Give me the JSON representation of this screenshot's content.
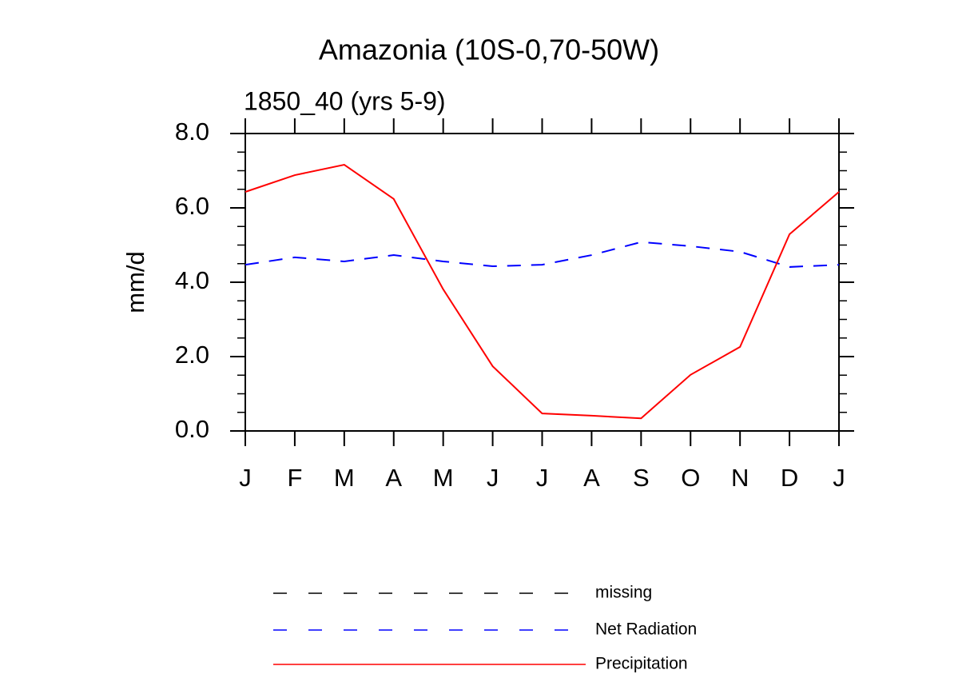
{
  "chart_data": {
    "type": "line",
    "title": "Amazonia (10S-0,70-50W)",
    "subtitle": "1850_40 (yrs 5-9)",
    "y_label": "mm/d",
    "categories": [
      "J",
      "F",
      "M",
      "A",
      "M",
      "J",
      "J",
      "A",
      "S",
      "O",
      "N",
      "D",
      "J"
    ],
    "series": [
      {
        "name": "missing",
        "color": "#000000",
        "dashed": true,
        "values": [
          null,
          null,
          null,
          null,
          null,
          null,
          null,
          null,
          null,
          null,
          null,
          null,
          null
        ]
      },
      {
        "name": "Net Radiation",
        "color": "#0000ff",
        "dashed": true,
        "values": [
          4.47,
          4.67,
          4.56,
          4.73,
          4.56,
          4.43,
          4.47,
          4.73,
          5.08,
          4.97,
          4.82,
          4.41,
          4.47
        ]
      },
      {
        "name": "Precipitation",
        "color": "#ff0000",
        "dashed": false,
        "values": [
          6.43,
          6.88,
          7.16,
          6.24,
          3.81,
          1.74,
          0.47,
          0.41,
          0.34,
          1.51,
          2.26,
          5.29,
          6.43
        ]
      }
    ],
    "ylim": [
      0,
      8
    ],
    "yticks": [
      {
        "value": 0,
        "label": "0.0"
      },
      {
        "value": 2,
        "label": "2.0"
      },
      {
        "value": 4,
        "label": "4.0"
      },
      {
        "value": 6,
        "label": "6.0"
      },
      {
        "value": 8,
        "label": "8.0"
      }
    ],
    "yminorticks": [
      0.5,
      1,
      1.5,
      2.5,
      3,
      3.5,
      4.5,
      5,
      5.5,
      6.5,
      7,
      7.5
    ],
    "grid": false
  }
}
